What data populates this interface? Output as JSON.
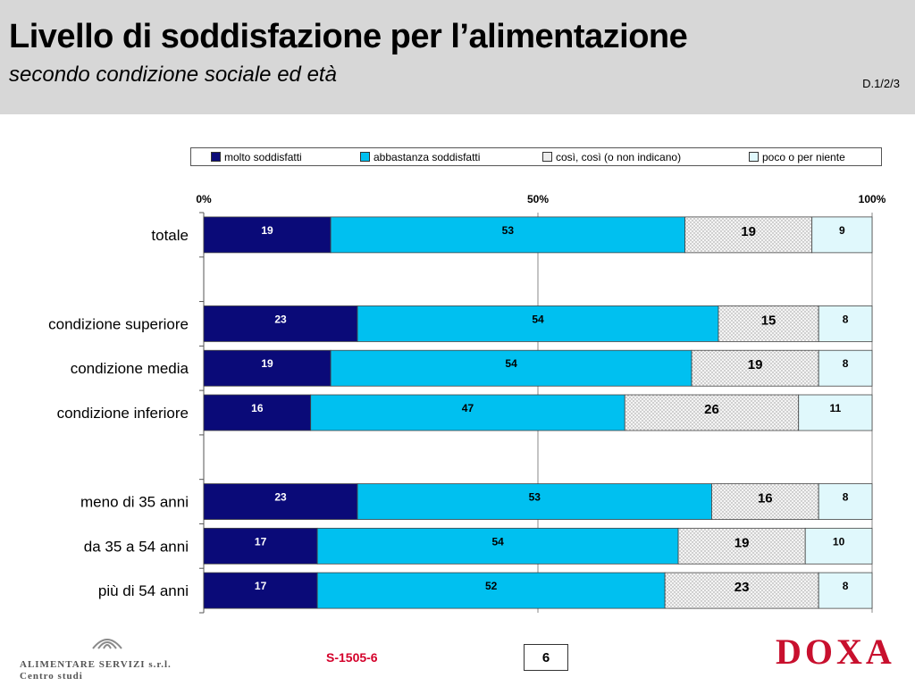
{
  "header": {
    "title": "Livello di soddisfazione per l’alimentazione",
    "subtitle": "secondo condizione sociale ed età",
    "code": "D.1/2/3"
  },
  "footer": {
    "company_line1": "ALIMENTARE SERVIZI s.r.l.",
    "company_line2": "Centro studi",
    "reference": "S-1505-6",
    "page_number": "6",
    "brand": "DOXA"
  },
  "colors": {
    "molto": "#0a0a78",
    "abbastanza": "#00c0f0",
    "cosi": "#ececec",
    "poco": "#e0f8fc",
    "header_bg": "#d7d7d7",
    "brand_red": "#c8102e"
  },
  "chart_data": {
    "type": "bar",
    "orientation": "horizontal",
    "stacked": true,
    "x_ticks": [
      "0%",
      "50%",
      "100%"
    ],
    "xlim": [
      0,
      100
    ],
    "legend_position": "top",
    "grid": "vertical at 0, 50, 100",
    "series": [
      {
        "name": "molto soddisfatti"
      },
      {
        "name": "abbastanza soddisfatti"
      },
      {
        "name": "così, così (o non indicano)"
      },
      {
        "name": "poco o per niente"
      }
    ],
    "categories": [
      {
        "label": "totale",
        "values": [
          19,
          53,
          19,
          9
        ]
      },
      {
        "label": "",
        "values": []
      },
      {
        "label": "condizione superiore",
        "values": [
          23,
          54,
          15,
          8
        ]
      },
      {
        "label": "condizione media",
        "values": [
          19,
          54,
          19,
          8
        ]
      },
      {
        "label": "condizione inferiore",
        "values": [
          16,
          47,
          26,
          11
        ]
      },
      {
        "label": "",
        "values": []
      },
      {
        "label": "meno di 35 anni",
        "values": [
          23,
          53,
          16,
          8
        ]
      },
      {
        "label": "da 35 a 54 anni",
        "values": [
          17,
          54,
          19,
          10
        ]
      },
      {
        "label": "più di 54 anni",
        "values": [
          17,
          52,
          23,
          8
        ]
      }
    ]
  }
}
